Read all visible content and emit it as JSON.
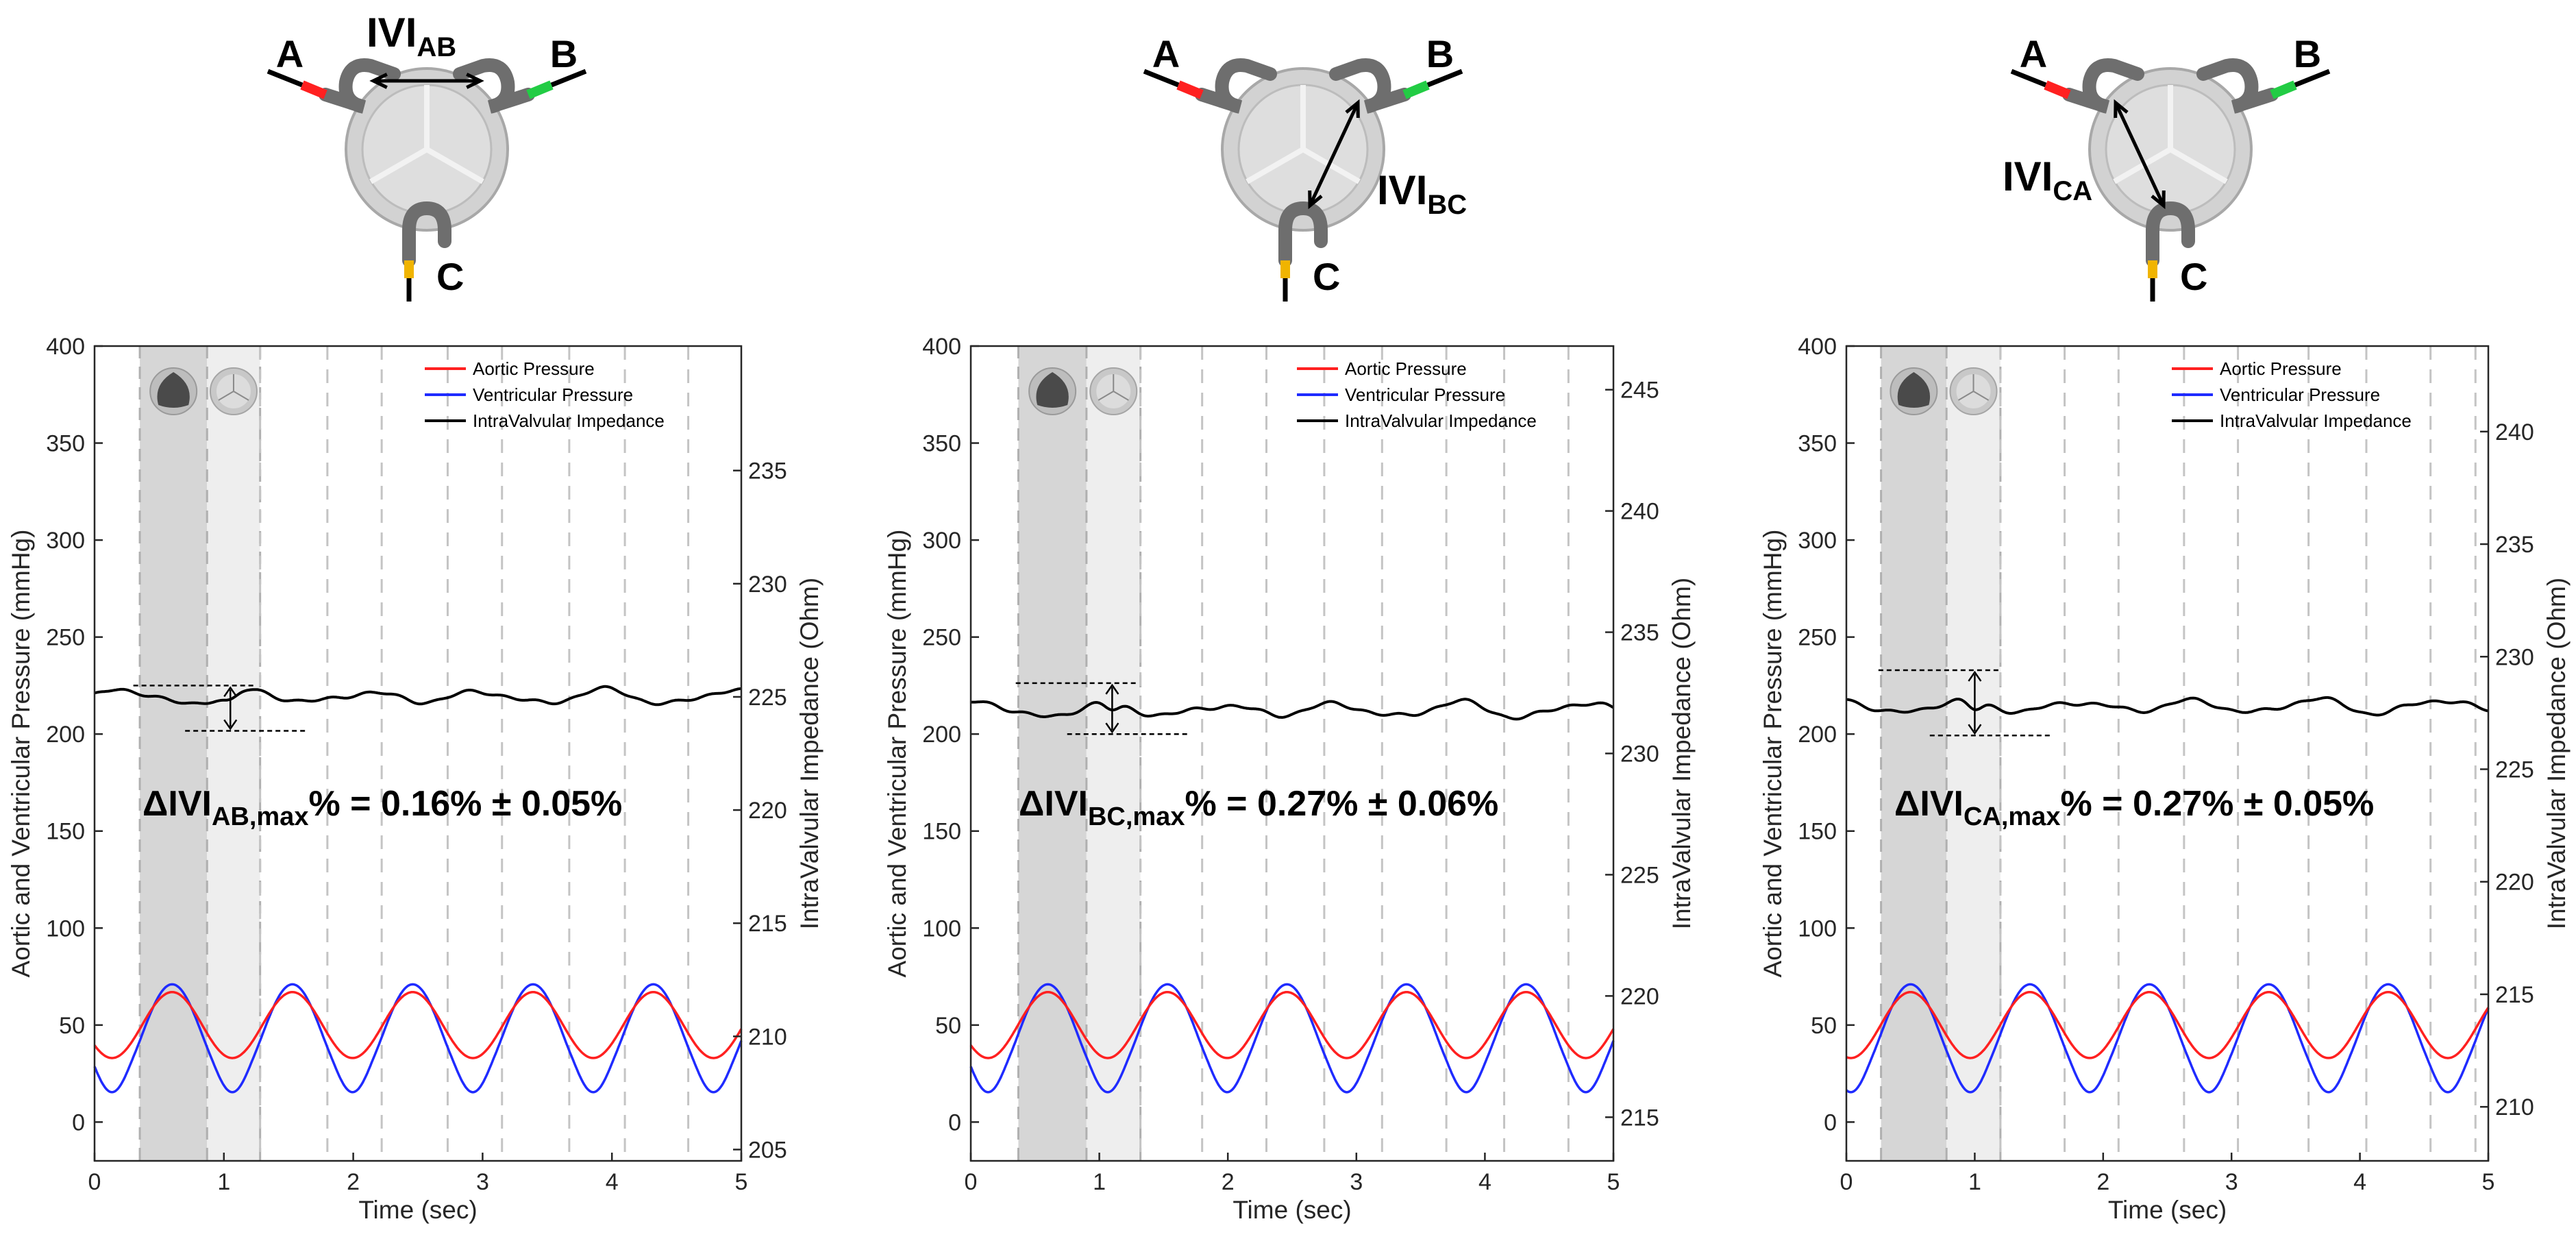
{
  "colors": {
    "aortic": "#ff2020",
    "ventricular": "#1f2bff",
    "impedance": "#000000",
    "shade_dark": "#d6d6d6",
    "shade_light": "#eeeeee",
    "grid": "#c4c4c4"
  },
  "legend": [
    "Aortic Pressure",
    "Ventricular Pressure",
    "IntraValvular Impedance"
  ],
  "xlabel": "Time (sec)",
  "ylabel_left": "Aortic and Ventricular Pressure (mmHg)",
  "ylabel_right": "IntraValvular Impedance (Ohm)",
  "valve_icons": [
    "valve-closed-icon",
    "valve-open-icon"
  ],
  "chart_data": [
    {
      "type": "line",
      "xlim": [
        0,
        5
      ],
      "ylim_left": [
        -20,
        400
      ],
      "ylim_right": [
        204.5,
        240.5
      ],
      "x_ticks": [
        0,
        1,
        2,
        3,
        4,
        5
      ],
      "y_ticks_left": [
        0,
        50,
        100,
        150,
        200,
        250,
        300,
        350,
        400
      ],
      "y_ticks_right": [
        205,
        210,
        215,
        220,
        225,
        230,
        235
      ],
      "shade_dark": [
        0.35,
        0.87
      ],
      "shade_light": [
        0.87,
        1.28
      ],
      "dashed_lines": [
        1.28,
        1.8,
        2.22,
        2.73,
        3.15,
        3.67,
        4.1,
        4.59
      ],
      "aortic": {
        "mean": 50,
        "amp": 17,
        "period": 0.93,
        "phase": 0.6
      },
      "ventricular": {
        "mean": 45,
        "amp": 26,
        "period": 0.93,
        "phase": 0.6
      },
      "impedance": {
        "base": 225.0,
        "dip_t": 1.05,
        "dip_depth": 0.35
      },
      "ivi_range": [
        223.5,
        225.5
      ],
      "annotation_main": "ΔIVI",
      "annotation_sub": "AB,max",
      "annotation_rest": "% = 0.16% ± 0.05%",
      "valve": {
        "label_a": "A",
        "label_b": "B",
        "label_c": "C",
        "ivi_main": "IVI",
        "ivi_sub": "AB",
        "pair": "AB"
      }
    },
    {
      "type": "line",
      "xlim": [
        0,
        5
      ],
      "ylim_left": [
        -20,
        400
      ],
      "ylim_right": [
        213.2,
        246.8
      ],
      "x_ticks": [
        0,
        1,
        2,
        3,
        4,
        5
      ],
      "y_ticks_left": [
        0,
        50,
        100,
        150,
        200,
        250,
        300,
        350,
        400
      ],
      "y_ticks_right": [
        215,
        220,
        225,
        230,
        235,
        240,
        245
      ],
      "shade_dark": [
        0.37,
        0.9
      ],
      "shade_light": [
        0.9,
        1.32
      ],
      "dashed_lines": [
        1.32,
        1.8,
        2.3,
        2.75,
        3.2,
        3.7,
        4.15,
        4.65
      ],
      "aortic": {
        "mean": 50,
        "amp": 17,
        "period": 0.93,
        "phase": 0.6
      },
      "ventricular": {
        "mean": 45,
        "amp": 26,
        "period": 0.93,
        "phase": 0.6
      },
      "impedance": {
        "base": 231.8,
        "dip_t": 1.1,
        "dip_depth": 0.3
      },
      "ivi_range": [
        230.8,
        232.9
      ],
      "annotation_main": "ΔIVI",
      "annotation_sub": "BC,max",
      "annotation_rest": "% = 0.27% ± 0.06%",
      "valve": {
        "label_a": "A",
        "label_b": "B",
        "label_c": "C",
        "ivi_main": "IVI",
        "ivi_sub": "BC",
        "pair": "BC"
      }
    },
    {
      "type": "line",
      "xlim": [
        0,
        5
      ],
      "ylim_left": [
        -20,
        400
      ],
      "ylim_right": [
        207.6,
        243.8
      ],
      "x_ticks": [
        0,
        1,
        2,
        3,
        4,
        5
      ],
      "y_ticks_left": [
        0,
        50,
        100,
        150,
        200,
        250,
        300,
        350,
        400
      ],
      "y_ticks_right": [
        210,
        215,
        220,
        225,
        230,
        235,
        240
      ],
      "shade_dark": [
        0.27,
        0.78
      ],
      "shade_light": [
        0.78,
        1.2
      ],
      "dashed_lines": [
        1.2,
        1.7,
        2.12,
        2.63,
        3.05,
        3.6,
        4.05,
        4.55,
        4.9
      ],
      "aortic": {
        "mean": 50,
        "amp": 17,
        "period": 0.93,
        "phase": 0.5
      },
      "ventricular": {
        "mean": 45,
        "amp": 26,
        "period": 0.93,
        "phase": 0.5
      },
      "impedance": {
        "base": 227.8,
        "dip_t": 1.0,
        "dip_depth": 0.4
      },
      "ivi_range": [
        226.5,
        229.4
      ],
      "annotation_main": "ΔIVI",
      "annotation_sub": "CA,max",
      "annotation_rest": "% = 0.27% ± 0.05%",
      "valve": {
        "label_a": "A",
        "label_b": "B",
        "label_c": "C",
        "ivi_main": "IVI",
        "ivi_sub": "CA",
        "pair": "CA"
      }
    }
  ]
}
